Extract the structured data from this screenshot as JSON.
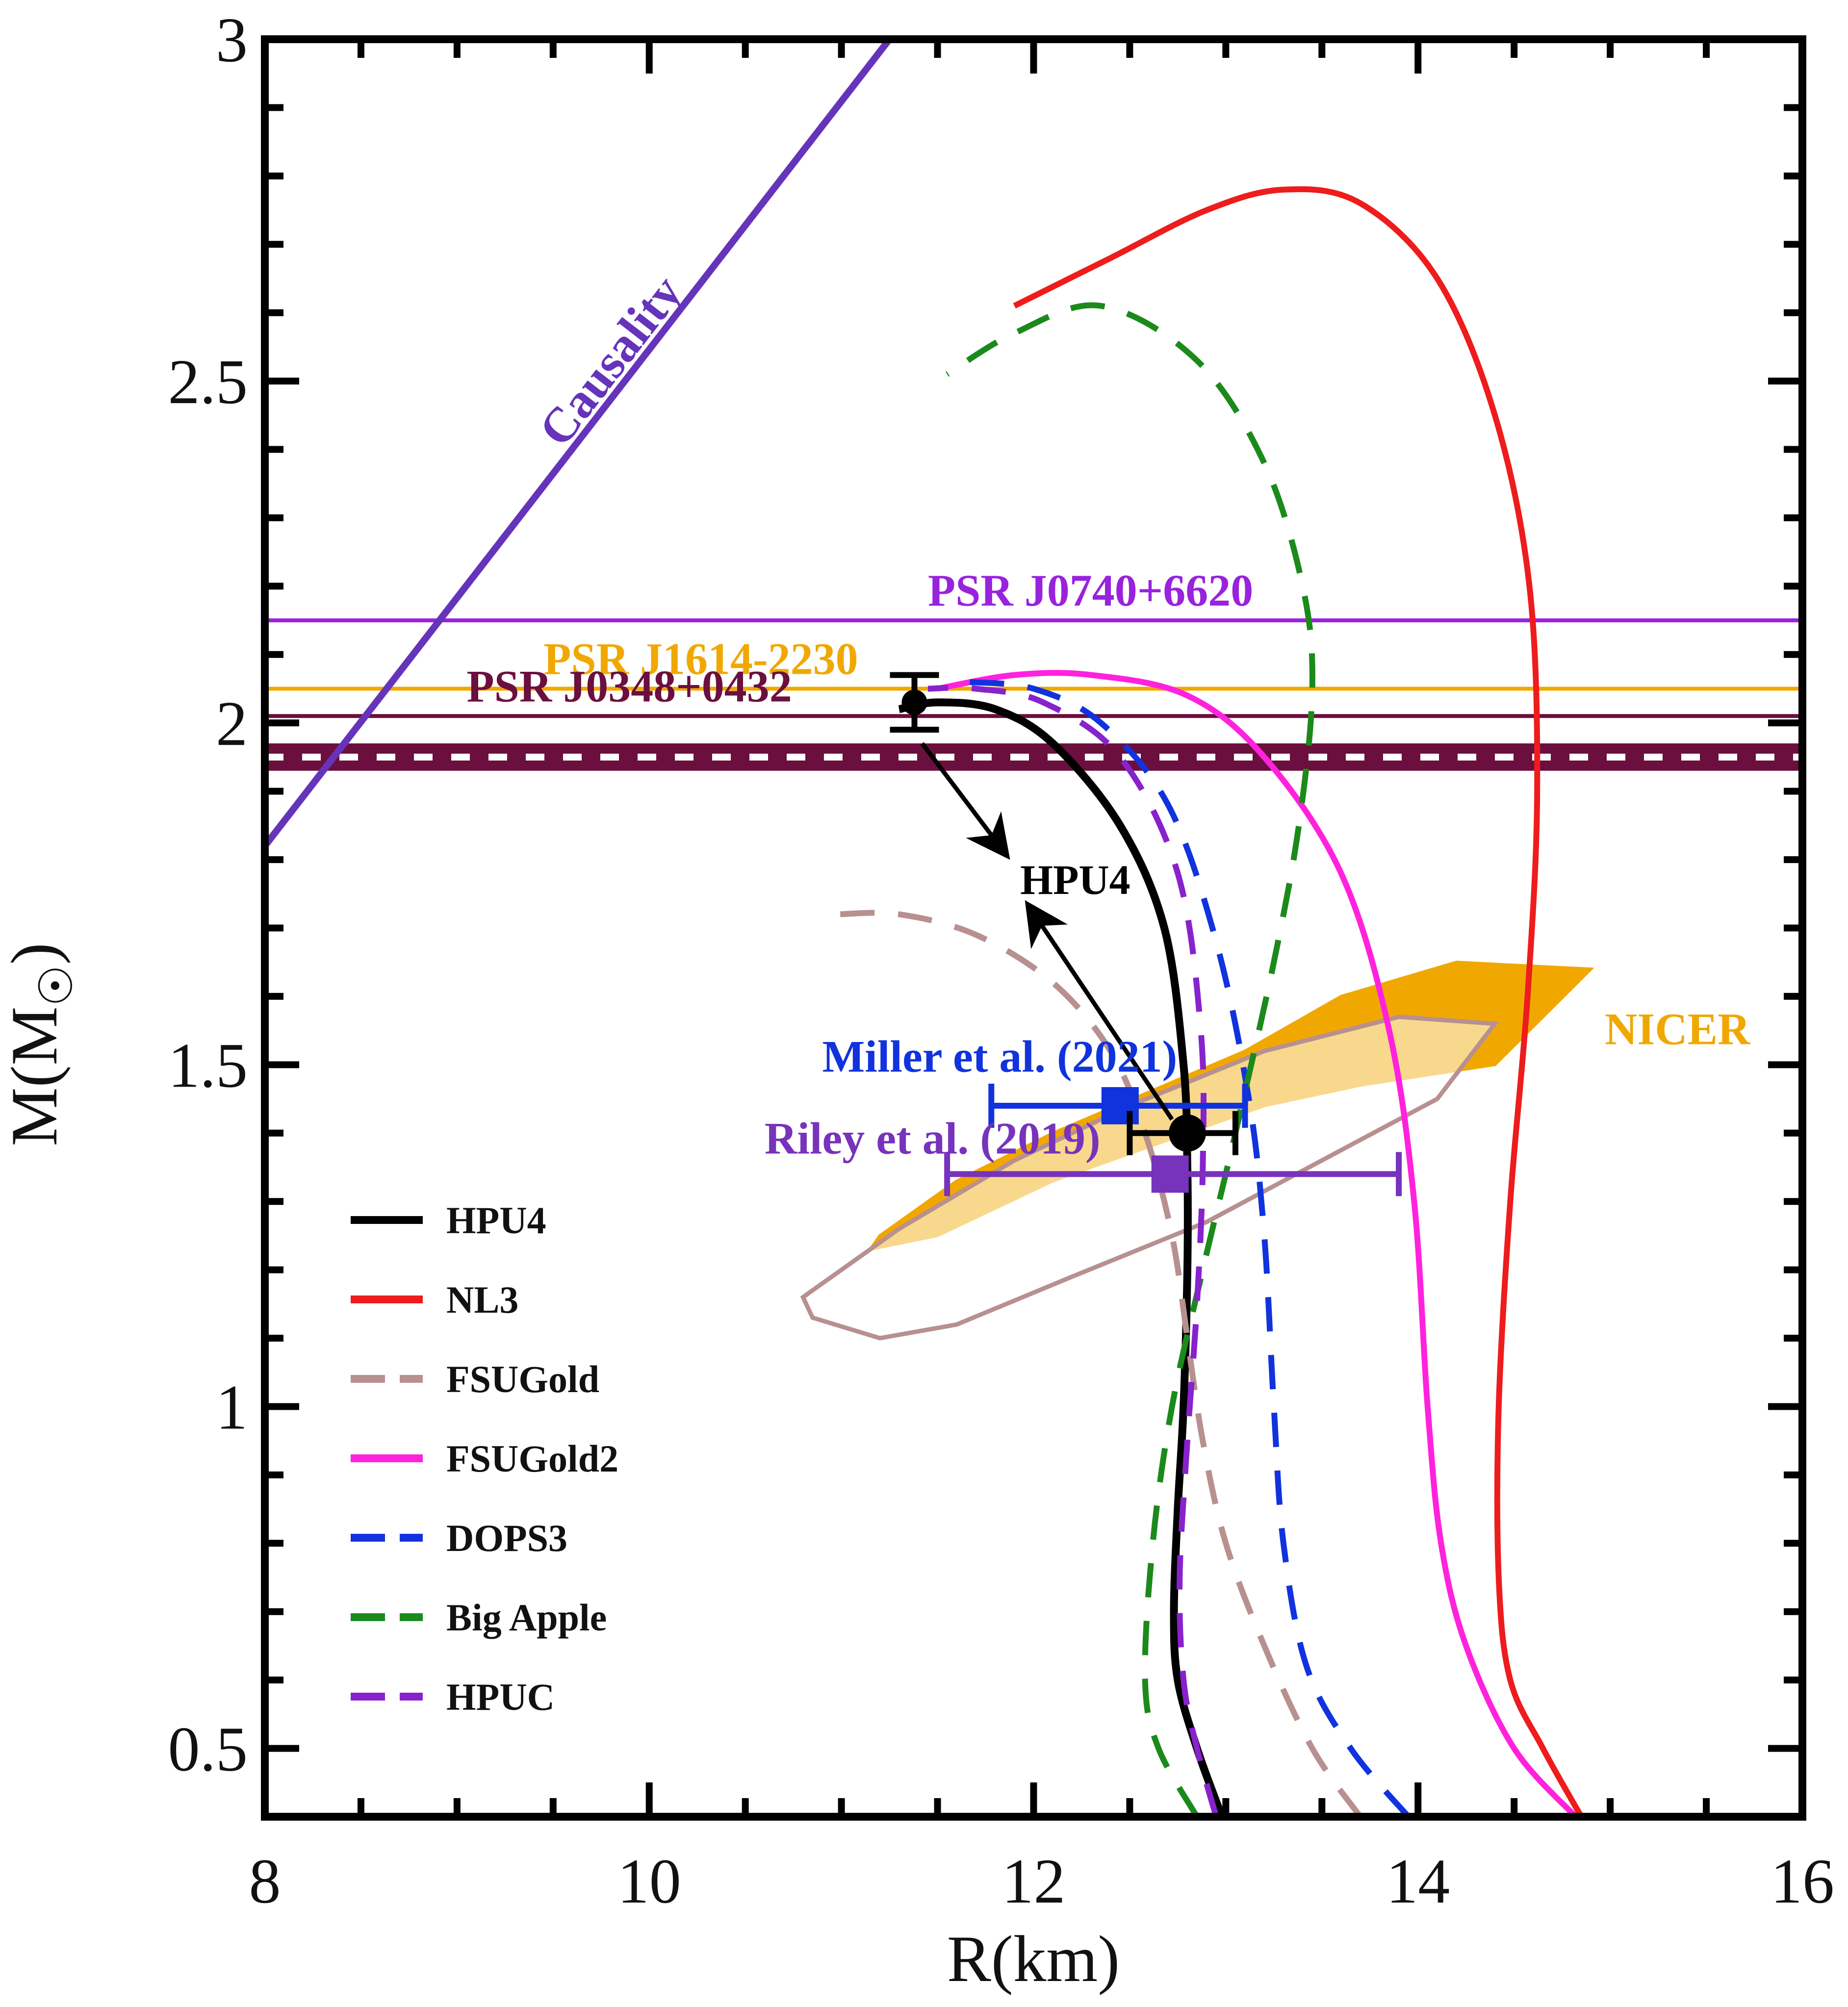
{
  "chart_data": {
    "type": "line",
    "xlabel": "R(km)",
    "ylabel": "M(M",
    "ylabel_symbol": "☉",
    "ylabel_close": ")",
    "xlim": [
      8,
      16
    ],
    "ylim": [
      0.4,
      3.0
    ],
    "xticks": [
      "8",
      "10",
      "12",
      "14",
      "16"
    ],
    "xtick_values": [
      8,
      10,
      12,
      14,
      16
    ],
    "yticks": [
      "0.5",
      "1",
      "1.5",
      "2",
      "2.5",
      "3"
    ],
    "ytick_values": [
      0.5,
      1.0,
      1.5,
      2.0,
      2.5,
      3.0
    ],
    "grid": false,
    "legend_position": "lower-left",
    "series": [
      {
        "name": "HPU4",
        "color": "#000000",
        "dash": "solid",
        "points": [
          [
            12.98,
            0.4
          ],
          [
            12.85,
            0.5
          ],
          [
            12.75,
            0.6
          ],
          [
            12.73,
            0.7
          ],
          [
            12.75,
            0.85
          ],
          [
            12.78,
            1.0
          ],
          [
            12.8,
            1.2
          ],
          [
            12.8,
            1.35
          ],
          [
            12.78,
            1.5
          ],
          [
            12.68,
            1.7
          ],
          [
            12.45,
            1.85
          ],
          [
            12.1,
            1.97
          ],
          [
            11.8,
            2.02
          ],
          [
            11.5,
            2.03
          ],
          [
            11.3,
            2.02
          ]
        ]
      },
      {
        "name": "NL3",
        "color": "#ee1c1c",
        "dash": "solid",
        "points": [
          [
            14.85,
            0.4
          ],
          [
            14.65,
            0.5
          ],
          [
            14.48,
            0.6
          ],
          [
            14.42,
            0.75
          ],
          [
            14.42,
            1.0
          ],
          [
            14.48,
            1.3
          ],
          [
            14.57,
            1.6
          ],
          [
            14.62,
            1.9
          ],
          [
            14.58,
            2.2
          ],
          [
            14.4,
            2.45
          ],
          [
            14.1,
            2.65
          ],
          [
            13.7,
            2.76
          ],
          [
            13.3,
            2.78
          ],
          [
            12.9,
            2.75
          ],
          [
            12.4,
            2.68
          ],
          [
            11.9,
            2.61
          ]
        ]
      },
      {
        "name": "FSUGold",
        "color": "#b89090",
        "dash": "dashed",
        "points": [
          [
            13.7,
            0.4
          ],
          [
            13.45,
            0.5
          ],
          [
            13.2,
            0.65
          ],
          [
            13.0,
            0.8
          ],
          [
            12.88,
            0.95
          ],
          [
            12.8,
            1.1
          ],
          [
            12.72,
            1.25
          ],
          [
            12.58,
            1.4
          ],
          [
            12.4,
            1.52
          ],
          [
            12.1,
            1.62
          ],
          [
            11.7,
            1.69
          ],
          [
            11.3,
            1.72
          ],
          [
            10.98,
            1.72
          ]
        ]
      },
      {
        "name": "FSUGold2",
        "color": "#ff22dd",
        "dash": "solid",
        "points": [
          [
            14.82,
            0.4
          ],
          [
            14.5,
            0.5
          ],
          [
            14.25,
            0.65
          ],
          [
            14.12,
            0.8
          ],
          [
            14.05,
            1.0
          ],
          [
            13.98,
            1.3
          ],
          [
            13.85,
            1.55
          ],
          [
            13.6,
            1.78
          ],
          [
            13.2,
            1.95
          ],
          [
            12.8,
            2.04
          ],
          [
            12.3,
            2.07
          ],
          [
            11.9,
            2.07
          ],
          [
            11.5,
            2.05
          ]
        ]
      },
      {
        "name": "DOPS3",
        "color": "#1133dd",
        "dash": "dashed",
        "points": [
          [
            13.95,
            0.4
          ],
          [
            13.65,
            0.5
          ],
          [
            13.42,
            0.62
          ],
          [
            13.3,
            0.8
          ],
          [
            13.25,
            1.0
          ],
          [
            13.2,
            1.25
          ],
          [
            13.12,
            1.45
          ],
          [
            12.95,
            1.68
          ],
          [
            12.7,
            1.88
          ],
          [
            12.35,
            2.0
          ],
          [
            12.0,
            2.05
          ],
          [
            11.65,
            2.06
          ]
        ]
      },
      {
        "name": "Big Apple",
        "color": "#1b8a1b",
        "dash": "dashed",
        "points": [
          [
            12.85,
            0.4
          ],
          [
            12.65,
            0.5
          ],
          [
            12.58,
            0.6
          ],
          [
            12.62,
            0.8
          ],
          [
            12.72,
            1.0
          ],
          [
            12.88,
            1.2
          ],
          [
            13.05,
            1.4
          ],
          [
            13.25,
            1.65
          ],
          [
            13.38,
            1.85
          ],
          [
            13.45,
            2.05
          ],
          [
            13.4,
            2.2
          ],
          [
            13.2,
            2.38
          ],
          [
            12.85,
            2.53
          ],
          [
            12.35,
            2.61
          ],
          [
            11.9,
            2.57
          ],
          [
            11.55,
            2.51
          ]
        ]
      },
      {
        "name": "HPUC",
        "color": "#8822cc",
        "dash": "dashed",
        "points": [
          [
            12.95,
            0.4
          ],
          [
            12.85,
            0.5
          ],
          [
            12.78,
            0.6
          ],
          [
            12.76,
            0.75
          ],
          [
            12.8,
            0.95
          ],
          [
            12.85,
            1.15
          ],
          [
            12.88,
            1.35
          ],
          [
            12.87,
            1.55
          ],
          [
            12.75,
            1.78
          ],
          [
            12.45,
            1.95
          ],
          [
            12.05,
            2.03
          ],
          [
            11.7,
            2.05
          ],
          [
            11.45,
            2.05
          ]
        ]
      }
    ],
    "causality": {
      "label": "Causality",
      "color": "#6633bb",
      "points": [
        [
          8.0,
          1.82
        ],
        [
          11.25,
          3.0
        ]
      ]
    },
    "constraints": [
      {
        "label": "PSR J0740+6620",
        "value": 2.15,
        "color": "#9922dd",
        "label_x": 11.45
      },
      {
        "label": "PSR J1614-2230",
        "value": 2.05,
        "color": "#f0a800",
        "label_x": 9.45
      },
      {
        "label": "PSR J0348+0432",
        "value": 2.01,
        "color": "#6b0f3e",
        "label_x": 9.05
      }
    ],
    "band_j0348": {
      "y_top": 1.97,
      "y_bottom": 1.93,
      "color": "#6b0f3e"
    },
    "annotations": [
      {
        "text": "NICER",
        "color": "#f0a800",
        "x": 15.35,
        "y": 1.53
      },
      {
        "text": "Miller et  al. (2021)",
        "color": "#1133dd",
        "x": 10.9,
        "y": 1.49
      },
      {
        "text": "Riley et  al. (2019)",
        "color": "#7733bb",
        "x": 10.6,
        "y": 1.37
      },
      {
        "text": "HPU4",
        "color": "#000000",
        "x": 11.93,
        "y": 1.75
      }
    ],
    "error_bars": [
      {
        "name": "Miller et al. (2021)",
        "x": 12.45,
        "y": 1.44,
        "xerr": [
          11.78,
          13.1
        ],
        "color": "#1133dd"
      },
      {
        "name": "Riley et al. (2019)",
        "x": 12.71,
        "y": 1.34,
        "xerr": [
          11.55,
          13.9
        ],
        "color": "#7733bb"
      },
      {
        "name": "HPU4 1.4",
        "x": 12.8,
        "y": 1.4,
        "xerr": [
          12.5,
          13.05
        ],
        "color": "#000000"
      },
      {
        "name": "HPU4 max",
        "x": 11.38,
        "y": 2.03,
        "yerr": [
          1.99,
          2.07
        ],
        "color": "#000000"
      }
    ],
    "nicer_contour": {
      "color": "#f0a800",
      "outer": [
        [
          11.2,
          1.25
        ],
        [
          11.6,
          1.33
        ],
        [
          12.1,
          1.4
        ],
        [
          12.6,
          1.46
        ],
        [
          13.1,
          1.52
        ],
        [
          13.6,
          1.6
        ],
        [
          14.2,
          1.65
        ],
        [
          14.9,
          1.64
        ],
        [
          14.4,
          1.5
        ],
        [
          13.7,
          1.47
        ],
        [
          13.2,
          1.44
        ],
        [
          12.6,
          1.38
        ],
        [
          12.1,
          1.33
        ],
        [
          11.5,
          1.25
        ],
        [
          11.15,
          1.23
        ]
      ],
      "grey": [
        [
          10.8,
          1.16
        ],
        [
          11.3,
          1.26
        ],
        [
          11.9,
          1.36
        ],
        [
          12.5,
          1.44
        ],
        [
          13.2,
          1.52
        ],
        [
          13.9,
          1.57
        ],
        [
          14.4,
          1.56
        ],
        [
          14.1,
          1.45
        ],
        [
          13.5,
          1.36
        ],
        [
          12.9,
          1.27
        ],
        [
          12.2,
          1.19
        ],
        [
          11.6,
          1.12
        ],
        [
          11.2,
          1.1
        ],
        [
          10.85,
          1.13
        ]
      ]
    }
  }
}
